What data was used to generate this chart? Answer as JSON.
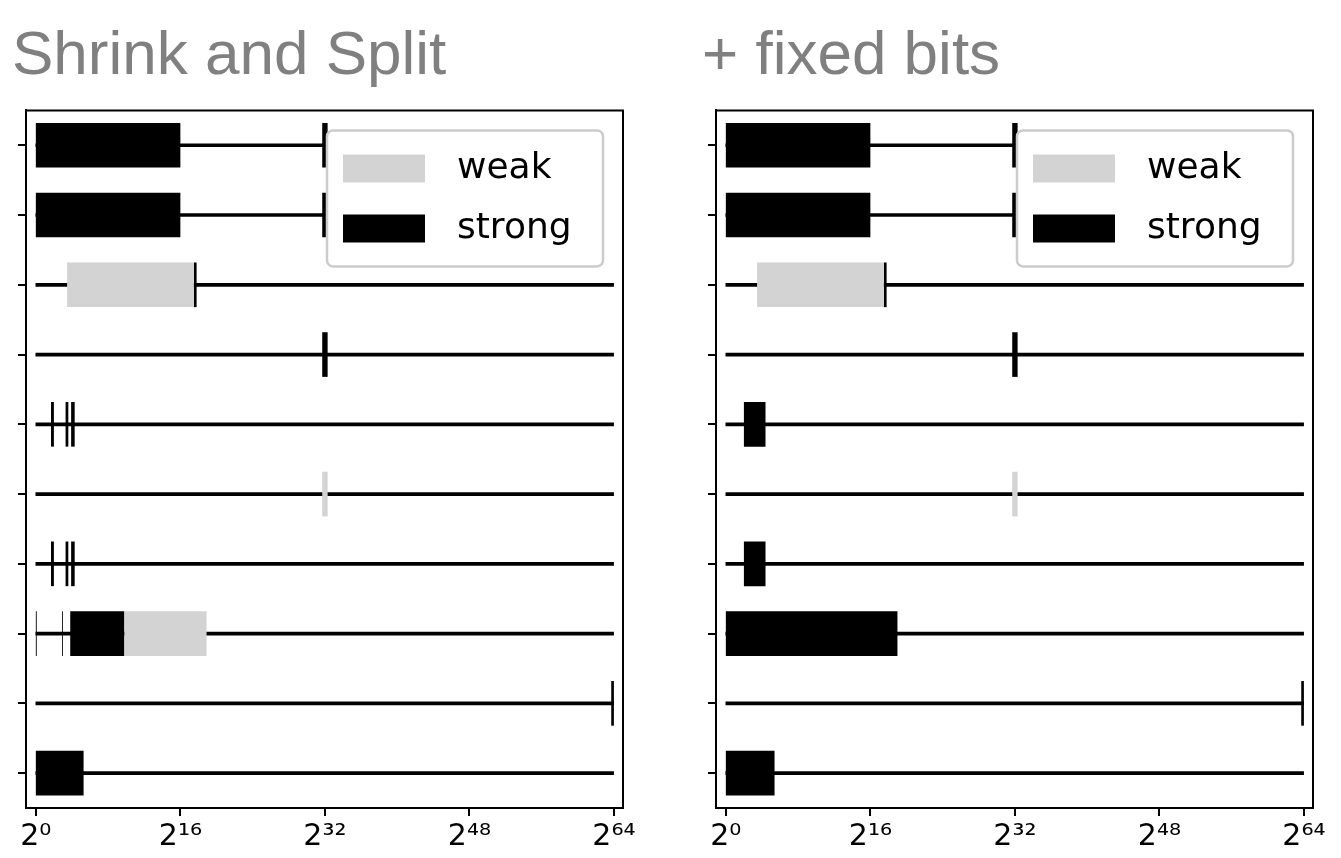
{
  "chart_data": [
    {
      "type": "bar",
      "title": "Shrink and Split",
      "orientation": "horizontal",
      "log": "x",
      "grid": false,
      "legend": "top right",
      "categories": [
        null,
        null,
        null,
        null,
        null,
        null,
        null,
        null,
        null,
        null
      ],
      "xlim": [
        0.47,
        3.7e+19
      ],
      "xticks": [
        {
          "value": 1,
          "label": "2⁰"
        },
        {
          "value": 65536,
          "label": "2¹⁶"
        },
        {
          "value": 4294967296,
          "label": "2³²"
        },
        {
          "value": 281474976710656,
          "label": "2⁴⁸"
        },
        {
          "value": 18446744073709551616,
          "label": "2⁶⁴"
        }
      ],
      "series": [
        {
          "color": "#000000",
          "line_style": "dotted",
          "base": [
            1,
            1,
            1,
            1,
            1,
            1,
            1,
            1,
            1,
            1
          ],
          "values": [
            4300000000.0,
            4300000000.0,
            1.8e+19,
            1.8e+19,
            1.8e+19,
            1.8e+19,
            1.8e+19,
            1.8e+19,
            1.8e+19,
            1.8e+19
          ]
        },
        {
          "name": "weak",
          "color": "#d3d3d3",
          "base": [
            null,
            null,
            11,
            null,
            null,
            3500000000.0,
            null,
            891,
            null,
            null
          ],
          "values": [
            null,
            null,
            185000,
            null,
            null,
            1800000000.0,
            null,
            488000,
            null,
            null
          ]
        },
        {
          "name": "strong",
          "color": "#000000",
          "base": [
            1,
            1,
            185000,
            3500000000.0,
            3.2,
            null,
            3.2,
            1,
            1.5e+19,
            1
          ],
          "values": [
            65535,
            65535,
            43000,
            1800000000.0,
            0.8,
            null,
            0.8,
            0.07,
            3.4e+18,
            38
          ]
        },
        {
          "color": "#000000",
          "base": [
            3500000000.0,
            3500000000.0,
            null,
            null,
            9.8,
            null,
            9.8,
            7.5,
            null,
            null
          ],
          "values": [
            1800000000.0,
            1800000000.0,
            null,
            null,
            2.3,
            null,
            2.3,
            0.5,
            null,
            null
          ]
        },
        {
          "color": "#000000",
          "base": [
            null,
            null,
            null,
            null,
            15,
            null,
            15,
            14,
            null,
            null
          ],
          "values": [
            null,
            null,
            null,
            null,
            4.7,
            null,
            4.7,
            877,
            null,
            null
          ]
        }
      ]
    },
    {
      "type": "bar",
      "title": "+ fixed bits",
      "orientation": "horizontal",
      "log": "x",
      "grid": false,
      "legend": "top right",
      "categories": [
        null,
        null,
        null,
        null,
        null,
        null,
        null,
        null,
        null,
        null
      ],
      "xlim": [
        0.47,
        3.7e+19
      ],
      "xticks": [
        {
          "value": 1,
          "label": "2⁰"
        },
        {
          "value": 65536,
          "label": "2¹⁶"
        },
        {
          "value": 4294967296,
          "label": "2³²"
        },
        {
          "value": 281474976710656,
          "label": "2⁴⁸"
        },
        {
          "value": 18446744073709551616,
          "label": "2⁶⁴"
        }
      ],
      "series": [
        {
          "color": "#000000",
          "line_style": "dotted",
          "base": [
            1,
            1,
            1,
            1,
            1,
            1,
            1,
            1,
            1,
            1
          ],
          "values": [
            4300000000.0,
            4300000000.0,
            1.8e+19,
            1.8e+19,
            1.8e+19,
            1.8e+19,
            1.8e+19,
            1.8e+19,
            1.8e+19,
            1.8e+19
          ]
        },
        {
          "name": "weak",
          "color": "#d3d3d3",
          "base": [
            null,
            null,
            11,
            null,
            null,
            3500000000.0,
            null,
            null,
            null,
            null
          ],
          "values": [
            null,
            null,
            185000,
            null,
            null,
            1800000000.0,
            null,
            null,
            null,
            null
          ]
        },
        {
          "name": "strong",
          "color": "#000000",
          "base": [
            1,
            1,
            185000,
            3500000000.0,
            4,
            null,
            4,
            1,
            1.5e+19,
            1
          ],
          "values": [
            65535,
            65535,
            43000,
            1800000000.0,
            17,
            null,
            17,
            524000,
            3.4e+18,
            41
          ]
        },
        {
          "color": "#000000",
          "base": [
            3500000000.0,
            3500000000.0,
            null,
            null,
            null,
            null,
            null,
            null,
            null,
            null
          ],
          "values": [
            1800000000.0,
            1800000000.0,
            null,
            null,
            null,
            null,
            null,
            null,
            null,
            null
          ]
        }
      ]
    }
  ]
}
